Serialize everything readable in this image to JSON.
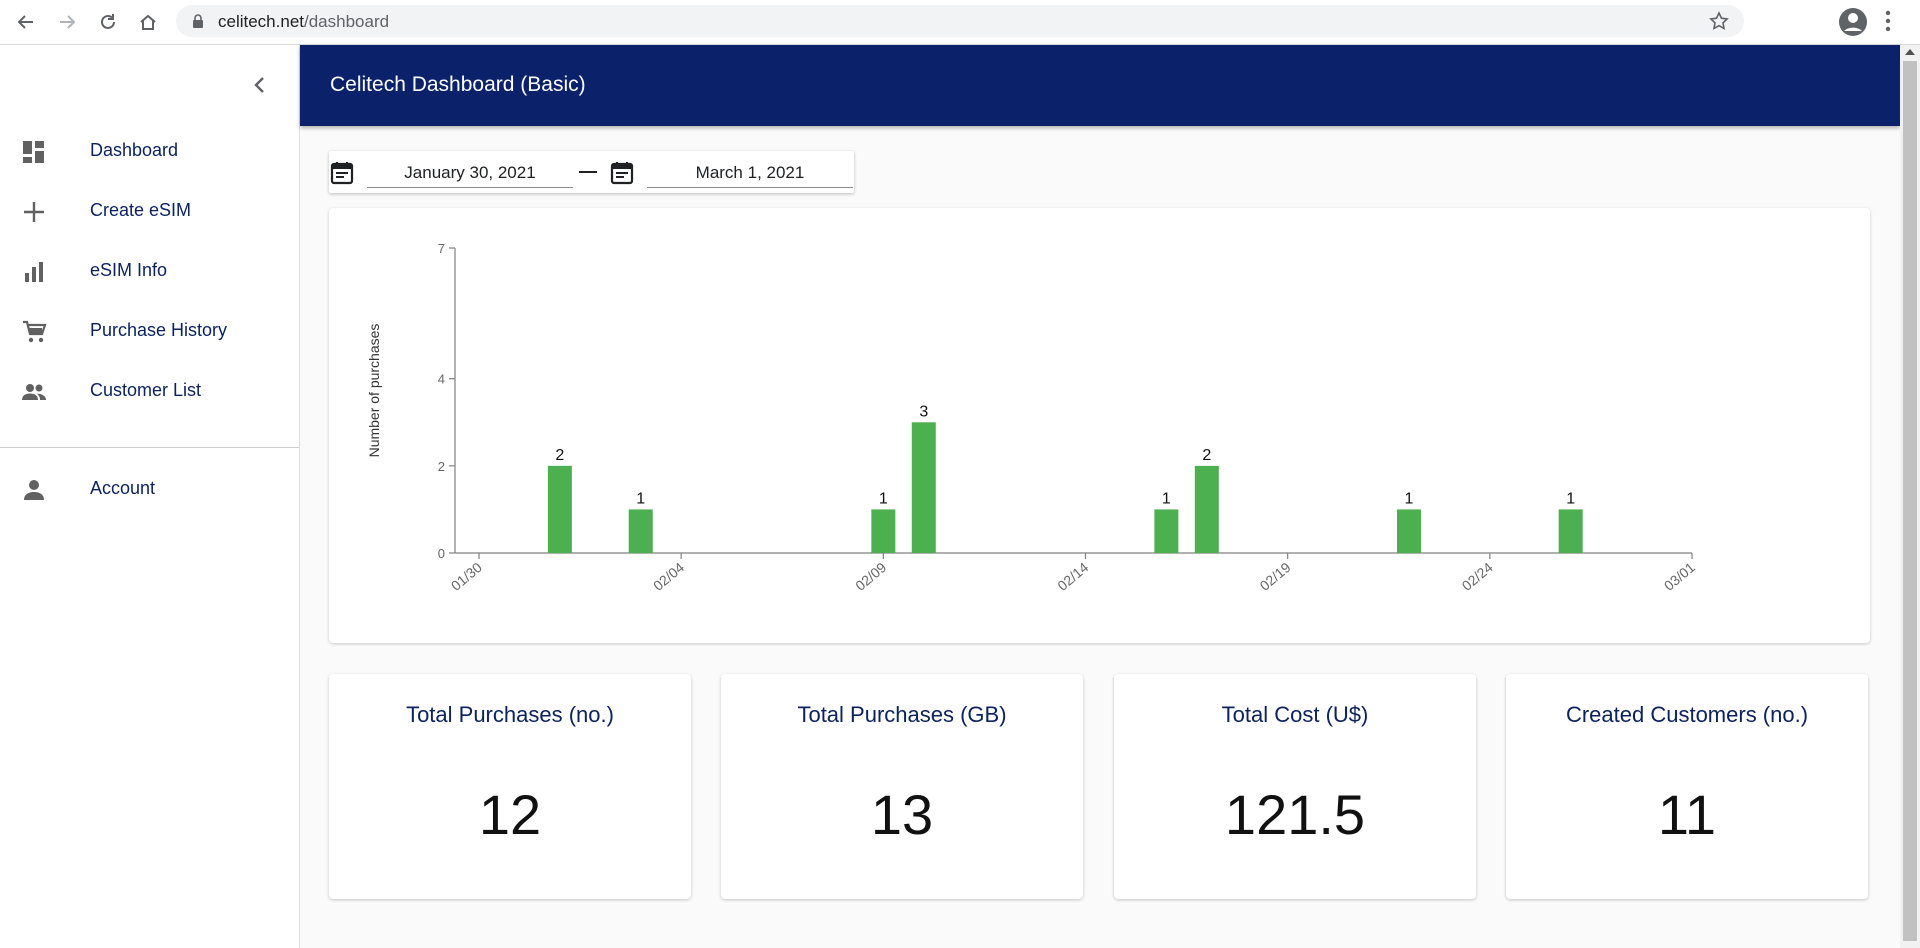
{
  "browser": {
    "url_host": "celitech.net",
    "url_path": "/dashboard"
  },
  "sidebar": {
    "items": [
      {
        "label": "Dashboard",
        "icon": "dashboard-icon"
      },
      {
        "label": "Create eSIM",
        "icon": "plus-icon"
      },
      {
        "label": "eSIM Info",
        "icon": "bar-chart-icon"
      },
      {
        "label": "Purchase History",
        "icon": "cart-icon"
      },
      {
        "label": "Customer List",
        "icon": "people-icon"
      }
    ],
    "account": {
      "label": "Account",
      "icon": "person-icon"
    }
  },
  "header": {
    "title": "Celitech Dashboard (Basic)"
  },
  "date_range": {
    "start": "January 30, 2021",
    "end": "March 1, 2021"
  },
  "chart_data": {
    "type": "bar",
    "ylabel": "Number of purchases",
    "ylim": [
      0,
      7
    ],
    "y_ticks": [
      "0",
      "2",
      "4",
      "7"
    ],
    "x_ticks": [
      "01/30",
      "02/04",
      "02/09",
      "02/14",
      "02/19",
      "02/24",
      "03/01"
    ],
    "bars": [
      {
        "date": "02/01",
        "value": 2
      },
      {
        "date": "02/03",
        "value": 1
      },
      {
        "date": "02/09",
        "value": 1
      },
      {
        "date": "02/10",
        "value": 3
      },
      {
        "date": "02/16",
        "value": 1
      },
      {
        "date": "02/17",
        "value": 2
      },
      {
        "date": "02/22",
        "value": 1
      },
      {
        "date": "02/26",
        "value": 1
      }
    ],
    "bar_color": "#4caf50",
    "grid": false
  },
  "stats": [
    {
      "label": "Total Purchases (no.)",
      "value": "12"
    },
    {
      "label": "Total Purchases (GB)",
      "value": "13"
    },
    {
      "label": "Total Cost (U$)",
      "value": "121.5"
    },
    {
      "label": "Created Customers (no.)",
      "value": "11"
    }
  ],
  "colors": {
    "header_bg": "#0b226b",
    "nav_text": "#0d2360",
    "bar": "#4caf50"
  }
}
